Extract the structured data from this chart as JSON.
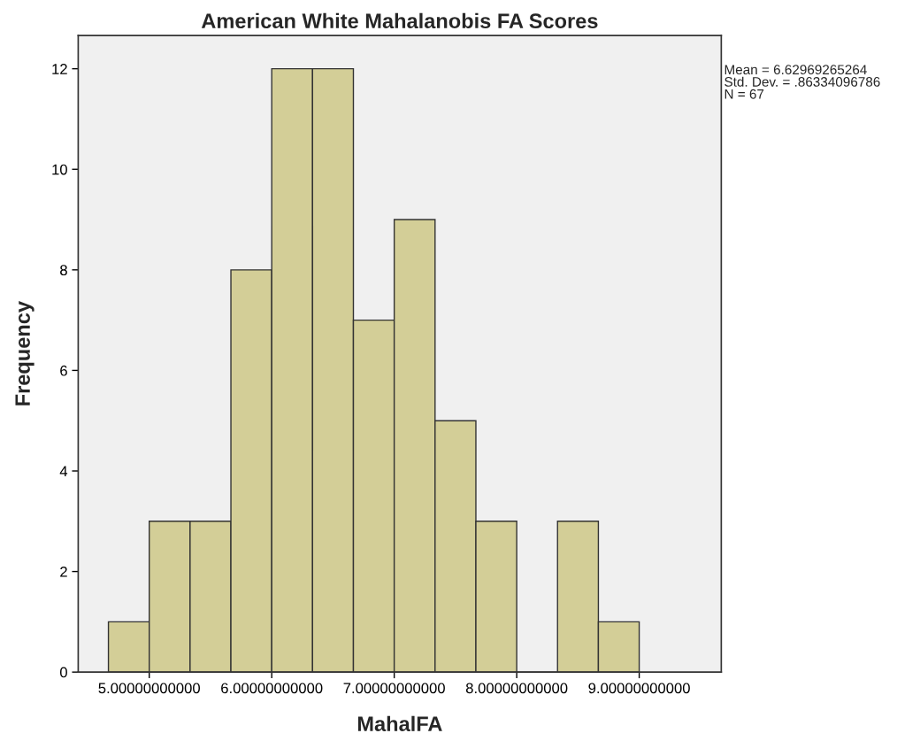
{
  "chart_data": {
    "type": "histogram",
    "title": "American White Mahalanobis FA Scores",
    "xlabel": "MahalFA",
    "ylabel": "Frequency",
    "bins": [
      4.6667,
      5.0,
      5.3333,
      5.6667,
      6.0,
      6.3333,
      6.6667,
      7.0,
      7.3333,
      7.6667,
      8.0,
      8.3333,
      8.6667,
      9.0
    ],
    "values": [
      1,
      3,
      3,
      8,
      12,
      12,
      7,
      9,
      5,
      3,
      0,
      3,
      1
    ],
    "color": "#d3ce97",
    "xlim": [
      4.42,
      9.67
    ],
    "xticks": [
      {
        "value": 5,
        "label": "5.00000000000"
      },
      {
        "value": 6,
        "label": "6.00000000000"
      },
      {
        "value": 7,
        "label": "7.00000000000"
      },
      {
        "value": 8,
        "label": "8.00000000000"
      },
      {
        "value": 9,
        "label": "9.00000000000"
      }
    ],
    "ylim": [
      0,
      12.66
    ],
    "yticks": [
      0,
      2,
      4,
      6,
      8,
      10,
      12
    ],
    "grid": false,
    "annotations": [
      "Mean = 6.62969265264",
      "Std. Dev. = .86334096786",
      "N = 67"
    ]
  }
}
